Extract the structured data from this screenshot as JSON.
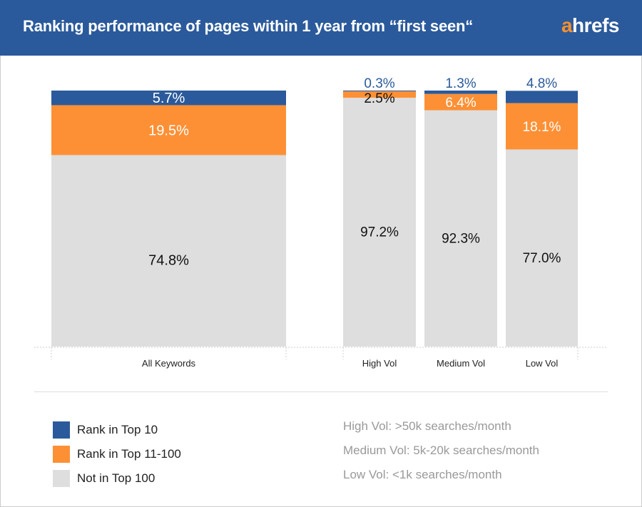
{
  "header": {
    "title": "Ranking performance of pages within 1 year from “first seen“",
    "logo": "ahrefs",
    "logo_first": "a",
    "logo_rest": "hrefs"
  },
  "colors": {
    "top10": "#2a5a9b",
    "top11_100": "#fd9035",
    "not_top100": "#dedede",
    "header": "#2a5a9b"
  },
  "chart_data": {
    "type": "bar",
    "stacked": true,
    "categories": [
      "All Keywords",
      "High Vol",
      "Medium Vol",
      "Low Vol"
    ],
    "series": [
      {
        "name": "Rank in Top 10",
        "values": [
          5.7,
          0.3,
          1.3,
          4.8
        ],
        "labels": [
          "5.7%",
          "0.3%",
          "1.3%",
          "4.8%"
        ]
      },
      {
        "name": "Rank in Top 11-100",
        "values": [
          19.5,
          2.5,
          6.4,
          18.1
        ],
        "labels": [
          "19.5%",
          "2.5%",
          "6.4%",
          "18.1%"
        ]
      },
      {
        "name": "Not in Top 100",
        "values": [
          74.8,
          97.2,
          92.3,
          77.0
        ],
        "labels": [
          "74.8%",
          "97.2%",
          "92.3%",
          "77.0%"
        ]
      }
    ],
    "ylim": [
      0,
      100
    ],
    "grid": false,
    "legend": "bottom-left"
  },
  "legend": [
    {
      "label": "Rank in Top 10"
    },
    {
      "label": "Rank in Top 11-100"
    },
    {
      "label": "Not in Top 100"
    }
  ],
  "notes": [
    "High Vol: >50k searches/month",
    "Medium Vol: 5k-20k searches/month",
    "Low Vol: <1k searches/month"
  ]
}
